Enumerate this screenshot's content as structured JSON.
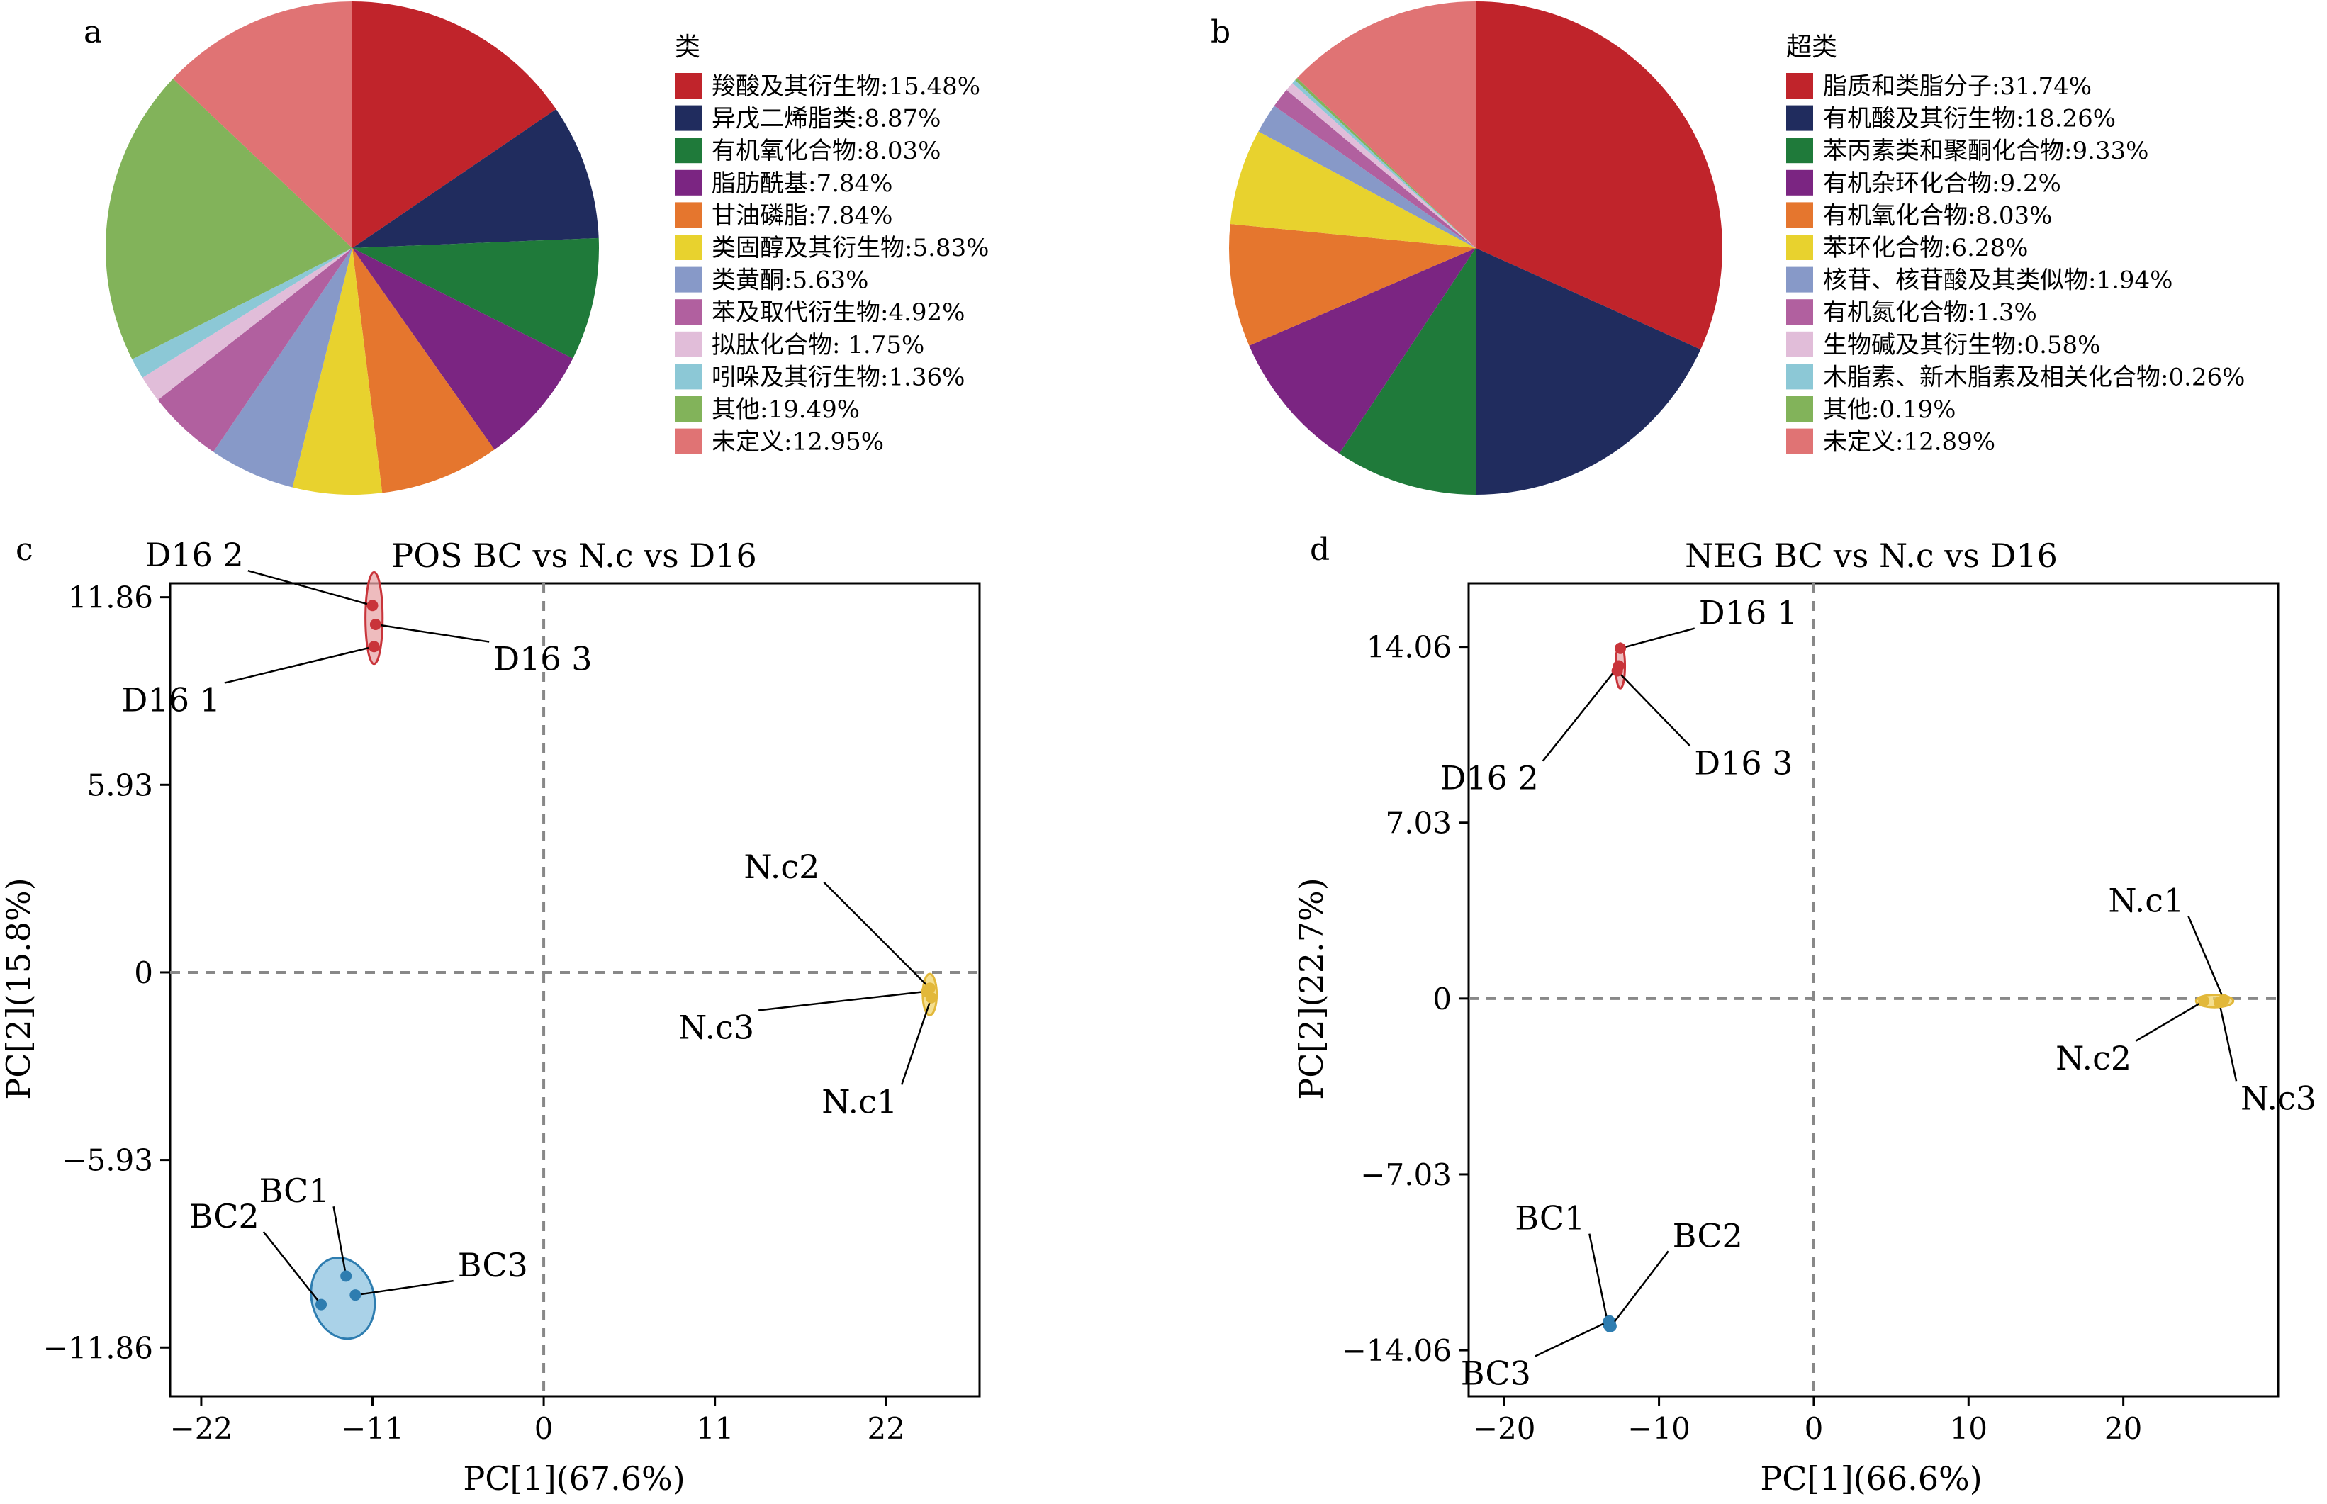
{
  "panels": {
    "a": {
      "letter": "a"
    },
    "b": {
      "letter": "b"
    },
    "c": {
      "letter": "c"
    },
    "d": {
      "letter": "d"
    }
  },
  "chart_data": [
    {
      "panel": "a",
      "type": "pie",
      "legend_title": "类",
      "legend_position": "right",
      "slices": [
        {
          "label": "羧酸及其衍生物:15.48%",
          "value": 15.48,
          "color": "#C0242B"
        },
        {
          "label": "异戊二烯脂类:8.87%",
          "value": 8.87,
          "color": "#202C5E"
        },
        {
          "label": "有机氧化合物:8.03%",
          "value": 8.03,
          "color": "#1F7A3A"
        },
        {
          "label": "脂肪酰基:7.84%",
          "value": 7.84,
          "color": "#7B2582"
        },
        {
          "label": "甘油磷脂:7.84%",
          "value": 7.84,
          "color": "#E5762E"
        },
        {
          "label": "类固醇及其衍生物:5.83%",
          "value": 5.83,
          "color": "#E8D22E"
        },
        {
          "label": "类黄酮:5.63%",
          "value": 5.63,
          "color": "#8799C8"
        },
        {
          "label": "苯及取代衍生物:4.92%",
          "value": 4.92,
          "color": "#B1609F"
        },
        {
          "label": "拟肽化合物: 1.75%",
          "value": 1.75,
          "color": "#E1BDD9"
        },
        {
          "label": "吲哚及其衍生物:1.36%",
          "value": 1.36,
          "color": "#8CC8D6"
        },
        {
          "label": "其他:19.49%",
          "value": 19.49,
          "color": "#82B35A"
        },
        {
          "label": "未定义:12.95%",
          "value": 12.95,
          "color": "#E07374"
        }
      ]
    },
    {
      "panel": "b",
      "type": "pie",
      "legend_title": "超类",
      "legend_position": "right",
      "slices": [
        {
          "label": "脂质和类脂分子:31.74%",
          "value": 31.74,
          "color": "#C0242B"
        },
        {
          "label": "有机酸及其衍生物:18.26%",
          "value": 18.26,
          "color": "#202C5E"
        },
        {
          "label": "苯丙素类和聚酮化合物:9.33%",
          "value": 9.33,
          "color": "#1F7A3A"
        },
        {
          "label": "有机杂环化合物:9.2%",
          "value": 9.2,
          "color": "#7B2582"
        },
        {
          "label": "有机氧化合物:8.03%",
          "value": 8.03,
          "color": "#E5762E"
        },
        {
          "label": "苯环化合物:6.28%",
          "value": 6.28,
          "color": "#E8D22E"
        },
        {
          "label": "核苷、核苷酸及其类似物:1.94%",
          "value": 1.94,
          "color": "#8799C8"
        },
        {
          "label": "有机氮化合物:1.3%",
          "value": 1.3,
          "color": "#B1609F"
        },
        {
          "label": "生物碱及其衍生物:0.58%",
          "value": 0.58,
          "color": "#E1BDD9"
        },
        {
          "label": "木脂素、新木脂素及相关化合物:0.26%",
          "value": 0.26,
          "color": "#8CC8D6"
        },
        {
          "label": "其他:0.19%",
          "value": 0.19,
          "color": "#82B35A"
        },
        {
          "label": "未定义:12.89%",
          "value": 12.89,
          "color": "#E07374"
        }
      ]
    },
    {
      "panel": "c",
      "type": "scatter",
      "title": "POS BC vs N.c vs D16",
      "xlabel": "PC[1](67.6%)",
      "ylabel": "PC[2](15.8%)",
      "xlim": [
        -24,
        28
      ],
      "ylim": [
        -13.4,
        12.3
      ],
      "xticks": [
        -22,
        -11,
        0,
        11,
        22
      ],
      "xtick_labels": [
        "−22",
        "−11",
        "0",
        "11",
        "22"
      ],
      "yticks": [
        11.86,
        5.93,
        0,
        -5.93,
        -11.86
      ],
      "ytick_labels": [
        "11.86",
        "5.93",
        "0",
        "−5.93",
        "−11.86"
      ],
      "groups": [
        {
          "color": "#C9343A",
          "fill": "#E8A5A8",
          "ellipse": {
            "cx": -10.9,
            "cy": 11.2,
            "rx": 0.55,
            "ry": 1.45,
            "angle": 0
          },
          "points": [
            {
              "label": "D16 2",
              "x": -11.0,
              "y": 11.6,
              "lx": -19.0,
              "ly": 12.7
            },
            {
              "label": "D16 3",
              "x": -10.8,
              "y": 11.0,
              "lx": -3.5,
              "ly": 10.45
            },
            {
              "label": "D16 1",
              "x": -10.9,
              "y": 10.3,
              "lx": -20.5,
              "ly": 9.15
            }
          ]
        },
        {
          "color": "#E2B83A",
          "fill": "#F2D46A",
          "ellipse": {
            "cx": 24.8,
            "cy": -0.7,
            "rx": 0.45,
            "ry": 0.65,
            "angle": 0
          },
          "points": [
            {
              "label": "N.c2",
              "x": 24.8,
              "y": -0.5,
              "lx": 18.0,
              "ly": 2.85
            },
            {
              "label": "N.c3",
              "x": 24.6,
              "y": -0.6,
              "lx": 13.8,
              "ly": -1.2
            },
            {
              "label": "N.c1",
              "x": 24.9,
              "y": -0.8,
              "lx": 23.0,
              "ly": -3.55
            }
          ]
        },
        {
          "color": "#2E7DB0",
          "fill": "#8DC3E0",
          "ellipse": {
            "cx": -12.9,
            "cy": -10.3,
            "rx": 2.0,
            "ry": 1.3,
            "angle": -15
          },
          "points": [
            {
              "label": "BC1",
              "x": -12.7,
              "y": -9.6,
              "lx": -13.5,
              "ly": -7.4
            },
            {
              "label": "BC2",
              "x": -14.3,
              "y": -10.5,
              "lx": -18.0,
              "ly": -8.2
            },
            {
              "label": "BC3",
              "x": -12.1,
              "y": -10.2,
              "lx": -5.8,
              "ly": -9.75
            }
          ]
        }
      ]
    },
    {
      "panel": "d",
      "type": "scatter",
      "title": "NEG BC vs N.c vs D16",
      "xlabel": "PC[1](66.6%)",
      "ylabel": "PC[2](22.7%)",
      "xlim": [
        -22.3,
        30
      ],
      "ylim": [
        -15.9,
        16.6
      ],
      "xticks": [
        -20,
        -10,
        0,
        10,
        20
      ],
      "xtick_labels": [
        "−20",
        "−10",
        "0",
        "10",
        "20"
      ],
      "yticks": [
        14.06,
        7.03,
        0,
        -7.03,
        -14.06
      ],
      "ytick_labels": [
        "14.06",
        "7.03",
        "0",
        "−7.03",
        "−14.06"
      ],
      "groups": [
        {
          "color": "#C9343A",
          "fill": "#E8A5A8",
          "ellipse": {
            "cx": -12.5,
            "cy": 13.3,
            "rx": 0.3,
            "ry": 0.9,
            "angle": 0
          },
          "points": [
            {
              "label": "D16 1",
              "x": -12.5,
              "y": 14.0,
              "lx": -7.7,
              "ly": 14.8
            },
            {
              "label": "D16 2",
              "x": -12.6,
              "y": 13.3,
              "lx": -17.5,
              "ly": 9.5
            },
            {
              "label": "D16 3",
              "x": -12.7,
              "y": 13.1,
              "lx": -8.0,
              "ly": 10.1
            }
          ]
        },
        {
          "color": "#E2B83A",
          "fill": "#F2D46A",
          "ellipse": {
            "cx": 25.9,
            "cy": -0.1,
            "rx": 1.2,
            "ry": 0.25,
            "angle": 0
          },
          "points": [
            {
              "label": "N.c1",
              "x": 26.5,
              "y": -0.05,
              "lx": 24.2,
              "ly": 3.3
            },
            {
              "label": "N.c2",
              "x": 25.2,
              "y": -0.1,
              "lx": 20.8,
              "ly": -1.7
            },
            {
              "label": "N.c3",
              "x": 26.2,
              "y": -0.15,
              "lx": 27.3,
              "ly": -3.3
            }
          ]
        },
        {
          "color": "#2E7DB0",
          "fill": "#8DC3E0",
          "ellipse": {
            "cx": -13.2,
            "cy": -13.0,
            "rx": 0.35,
            "ry": 0.3,
            "angle": 0
          },
          "points": [
            {
              "label": "BC1",
              "x": -13.3,
              "y": -13.0,
              "lx": -14.5,
              "ly": -9.4
            },
            {
              "label": "BC2",
              "x": -13.1,
              "y": -13.1,
              "lx": -9.4,
              "ly": -10.1
            },
            {
              "label": "BC3",
              "x": -13.25,
              "y": -12.9,
              "lx": -18.0,
              "ly": -14.3
            }
          ]
        }
      ]
    }
  ]
}
